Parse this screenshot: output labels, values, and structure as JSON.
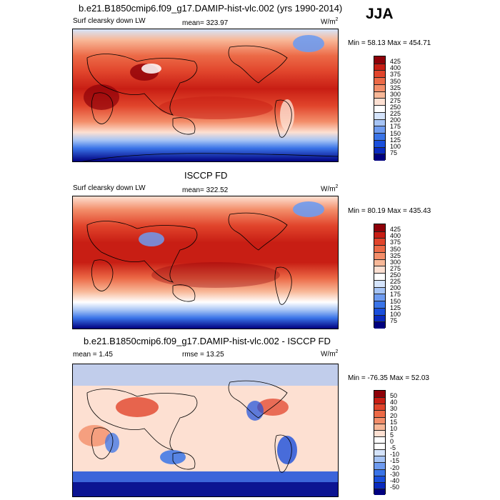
{
  "season": "JJA",
  "colors": {
    "abs_scale": [
      "#00007f",
      "#0a2bbf",
      "#1a4fdc",
      "#3a74e8",
      "#6e9bf0",
      "#a6c4f5",
      "#d5e4fb",
      "#ffffff",
      "#fde0d2",
      "#f8b898",
      "#f38e6a",
      "#ec6a47",
      "#e1452c",
      "#c81e14",
      "#8e0008"
    ],
    "diff_scale": [
      "#00007f",
      "#0a2bbf",
      "#1a4fdc",
      "#3a74e8",
      "#6e9bf0",
      "#a6c4f5",
      "#d5e4fb",
      "#ffffff",
      "#ffffff",
      "#fde0d2",
      "#f8b898",
      "#f38e6a",
      "#ec6a47",
      "#e1452c",
      "#c81e14",
      "#8e0008"
    ]
  },
  "panels": [
    {
      "id": "model",
      "title": "b.e21.B1850cmip6.f09_g17.DAMIP-hist-vlc.002 (yrs 1990-2014)",
      "left_label": "Surf clearsky down LW",
      "center_label": "mean= 323.97",
      "units": "W/m",
      "units_sup": "2",
      "min_max": "Min =  58.13 Max = 454.71",
      "colorbar_labels": [
        "425",
        "400",
        "375",
        "350",
        "325",
        "300",
        "275",
        "250",
        "225",
        "200",
        "175",
        "150",
        "125",
        "100",
        "75"
      ]
    },
    {
      "id": "obs",
      "title": "ISCCP FD",
      "left_label": "Surf clearsky down LW",
      "center_label": "mean= 322.52",
      "units": "W/m",
      "units_sup": "2",
      "min_max": "Min =  80.19 Max = 435.43",
      "colorbar_labels": [
        "425",
        "400",
        "375",
        "350",
        "325",
        "300",
        "275",
        "250",
        "225",
        "200",
        "175",
        "150",
        "125",
        "100",
        "75"
      ]
    },
    {
      "id": "diff",
      "title": "b.e21.B1850cmip6.f09_g17.DAMIP-hist-vlc.002 - ISCCP FD",
      "left_label": "mean =   1.45",
      "center_label": "rmse =  13.25",
      "units": "W/m",
      "units_sup": "2",
      "min_max": "Min = -76.35 Max =  52.03",
      "colorbar_labels": [
        "50",
        "40",
        "30",
        "20",
        "15",
        "10",
        "5",
        "0",
        "-5",
        "-10",
        "-15",
        "-20",
        "-30",
        "-40",
        "-50"
      ]
    }
  ],
  "chart_data": [
    {
      "type": "heatmap",
      "title": "b.e21.B1850cmip6.f09_g17.DAMIP-hist-vlc.002 (yrs 1990-2014)",
      "variable": "Surf clearsky down LW",
      "season": "JJA",
      "units": "W/m2",
      "mean": 323.97,
      "min": 58.13,
      "max": 454.71,
      "levels": [
        75,
        100,
        125,
        150,
        175,
        200,
        225,
        250,
        275,
        300,
        325,
        350,
        375,
        400,
        425
      ],
      "legend": "right"
    },
    {
      "type": "heatmap",
      "title": "ISCCP FD",
      "variable": "Surf clearsky down LW",
      "season": "JJA",
      "units": "W/m2",
      "mean": 322.52,
      "min": 80.19,
      "max": 435.43,
      "levels": [
        75,
        100,
        125,
        150,
        175,
        200,
        225,
        250,
        275,
        300,
        325,
        350,
        375,
        400,
        425
      ],
      "legend": "right"
    },
    {
      "type": "heatmap",
      "title": "b.e21.B1850cmip6.f09_g17.DAMIP-hist-vlc.002 - ISCCP FD",
      "season": "JJA",
      "units": "W/m2",
      "mean": 1.45,
      "rmse": 13.25,
      "min": -76.35,
      "max": 52.03,
      "levels": [
        -50,
        -40,
        -30,
        -20,
        -15,
        -10,
        -5,
        0,
        5,
        10,
        15,
        20,
        30,
        40,
        50
      ],
      "legend": "right"
    }
  ]
}
